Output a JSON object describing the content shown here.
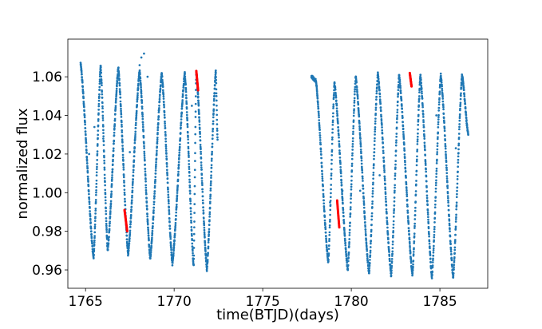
{
  "chart_data": {
    "type": "scatter",
    "xlabel": "time(BTJD)(days)",
    "ylabel": "normalized flux",
    "xlim": [
      1764.0,
      1787.7
    ],
    "ylim": [
      0.9505,
      1.0795
    ],
    "xticks": [
      1765,
      1770,
      1775,
      1780,
      1785
    ],
    "yticks": [
      0.96,
      0.98,
      1.0,
      1.02,
      1.04,
      1.06
    ],
    "ytick_labels": [
      "0.96",
      "0.98",
      "1.00",
      "1.02",
      "1.04",
      "1.06"
    ],
    "grid": false,
    "legend": "none",
    "colors": {
      "normal": "#1f77b4",
      "flagged": "#ff0000"
    },
    "pulsation": {
      "description_of_shape": "sawtooth: rapid brightness fall, slower rise",
      "period_days": 1.23,
      "segments": [
        {
          "start": 1764.72,
          "end": 1772.45,
          "key_points": [
            [
              1764.72,
              1.067
            ],
            [
              1765.45,
              0.966
            ],
            [
              1765.85,
              1.066
            ],
            [
              1766.25,
              0.97
            ],
            [
              1766.85,
              1.065
            ],
            [
              1767.4,
              0.968
            ],
            [
              1768.05,
              1.063
            ],
            [
              1768.65,
              0.966
            ],
            [
              1769.3,
              1.062
            ],
            [
              1769.9,
              0.963
            ],
            [
              1770.6,
              1.062
            ],
            [
              1771.1,
              0.962
            ],
            [
              1771.25,
              1.063
            ],
            [
              1771.85,
              0.96
            ],
            [
              1772.35,
              1.063
            ],
            [
              1772.45,
              1.027
            ]
          ]
        },
        {
          "start": 1777.75,
          "end": 1786.6,
          "key_points": [
            [
              1777.75,
              1.06
            ],
            [
              1778.0,
              1.058
            ],
            [
              1778.7,
              0.964
            ],
            [
              1779.05,
              1.057
            ],
            [
              1779.8,
              0.96
            ],
            [
              1780.25,
              1.06
            ],
            [
              1781.0,
              0.958
            ],
            [
              1781.5,
              1.062
            ],
            [
              1782.25,
              0.957
            ],
            [
              1782.7,
              1.061
            ],
            [
              1783.45,
              0.957
            ],
            [
              1783.9,
              1.061
            ],
            [
              1784.55,
              0.956
            ],
            [
              1785.05,
              1.061
            ],
            [
              1785.75,
              0.956
            ],
            [
              1786.25,
              1.061
            ],
            [
              1786.6,
              1.03
            ]
          ]
        }
      ]
    },
    "flagged_segments": [
      {
        "from": [
          1767.2,
          0.991
        ],
        "to": [
          1767.35,
          0.98
        ]
      },
      {
        "from": [
          1771.25,
          1.063
        ],
        "to": [
          1771.35,
          1.053
        ]
      },
      {
        "from": [
          1779.2,
          0.996
        ],
        "to": [
          1779.32,
          0.982
        ]
      },
      {
        "from": [
          1783.3,
          1.062
        ],
        "to": [
          1783.4,
          1.055
        ]
      }
    ],
    "outliers": [
      [
        1765.5,
        1.034
      ],
      [
        1765.2,
        1.02
      ],
      [
        1766.0,
        1.028
      ],
      [
        1767.5,
        1.021
      ],
      [
        1768.05,
        1.066
      ],
      [
        1768.15,
        1.07
      ],
      [
        1768.3,
        1.072
      ],
      [
        1768.5,
        1.06
      ],
      [
        1771.0,
        1.045
      ],
      [
        1778.8,
        0.995
      ],
      [
        1780.5,
        1.001
      ],
      [
        1781.6,
        1.009
      ],
      [
        1784.8,
        1.04
      ],
      [
        1779.5,
        1.001
      ],
      [
        1785.9,
        1.023
      ]
    ]
  }
}
